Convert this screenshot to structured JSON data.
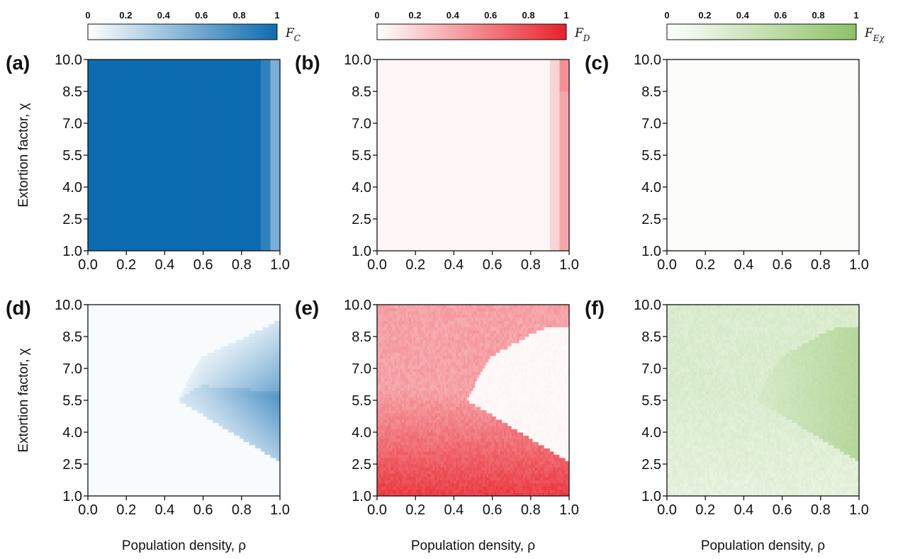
{
  "colorbars": [
    {
      "ticks": [
        "0",
        "0.2",
        "0.4",
        "0.6",
        "0.8",
        "1"
      ],
      "label": "F",
      "label_sub": "C",
      "color": "#0d6cb1"
    },
    {
      "ticks": [
        "0",
        "0.2",
        "0.4",
        "0.6",
        "0.8",
        "1"
      ],
      "label": "F",
      "label_sub": "D",
      "color": "#e8212b"
    },
    {
      "ticks": [
        "0",
        "0.2",
        "0.4",
        "0.6",
        "0.8",
        "1"
      ],
      "label": "F",
      "label_sub": "Eχ",
      "color": "#8cc265"
    }
  ],
  "chart_data": [
    {
      "panel": "(a)",
      "type": "heatmap",
      "strategy": "C",
      "color": "#0d6cb1",
      "xlabel": "",
      "ylabel": "Extortion factor, χ",
      "xlim": [
        0,
        1
      ],
      "ylim": [
        1,
        10
      ],
      "xticks": [
        "0.0",
        "0.2",
        "0.4",
        "0.6",
        "0.8",
        "1.0"
      ],
      "yticks": [
        "1.0",
        "2.5",
        "4.0",
        "5.5",
        "7.0",
        "8.5",
        "10.0"
      ],
      "grid": false,
      "description_values": {
        "rho_below_0.9": 1.0,
        "rho_0.9_to_0.95": 0.85,
        "rho_0.95_to_1.0": 0.55
      }
    },
    {
      "panel": "(b)",
      "type": "heatmap",
      "strategy": "D",
      "color": "#e8212b",
      "xlabel": "",
      "ylabel": "",
      "xlim": [
        0,
        1
      ],
      "ylim": [
        1,
        10
      ],
      "xticks": [
        "0.0",
        "0.2",
        "0.4",
        "0.6",
        "0.8",
        "1.0"
      ],
      "yticks": [
        "1.0",
        "2.5",
        "4.0",
        "5.5",
        "7.0",
        "8.5",
        "10.0"
      ],
      "grid": false,
      "description_values": {
        "rho_below_0.9": 0.04,
        "rho_0.9_to_0.95": 0.2,
        "rho_0.95_to_1.0": 0.45
      }
    },
    {
      "panel": "(c)",
      "type": "heatmap",
      "strategy": "Eχ",
      "color": "#8cc265",
      "xlabel": "",
      "ylabel": "",
      "xlim": [
        0,
        1
      ],
      "ylim": [
        1,
        10
      ],
      "xticks": [
        "0.0",
        "0.2",
        "0.4",
        "0.6",
        "0.8",
        "1.0"
      ],
      "yticks": [
        "1.0",
        "2.5",
        "4.0",
        "5.5",
        "7.0",
        "8.5",
        "10.0"
      ],
      "grid": false,
      "description_values": {
        "everywhere": 0.03,
        "rho_above_0.99_chi_above_8.5": 0.15
      }
    },
    {
      "panel": "(d)",
      "type": "heatmap",
      "strategy": "C",
      "color": "#0d6cb1",
      "xlabel": "Population density, ρ",
      "ylabel": "Extortion factor, χ",
      "xlim": [
        0,
        1
      ],
      "ylim": [
        1,
        10
      ],
      "xticks": [
        "0.0",
        "0.2",
        "0.4",
        "0.6",
        "0.8",
        "1.0"
      ],
      "yticks": [
        "1.0",
        "2.5",
        "4.0",
        "5.5",
        "7.0",
        "8.5",
        "10.0"
      ],
      "grid": false,
      "region_boundary": {
        "tip_rho": 0.47,
        "tip_chi": 5.5,
        "upper": [
          [
            0.47,
            5.5
          ],
          [
            0.55,
            7.0
          ],
          [
            0.6,
            7.6
          ],
          [
            0.8,
            8.4
          ],
          [
            1.0,
            9.3
          ]
        ],
        "lower": [
          [
            0.47,
            5.5
          ],
          [
            0.6,
            4.8
          ],
          [
            0.8,
            3.7
          ],
          [
            1.0,
            2.6
          ]
        ]
      },
      "description_values": {
        "outside_region": 0.03,
        "inside_region_max": 0.55
      }
    },
    {
      "panel": "(e)",
      "type": "heatmap",
      "strategy": "D",
      "color": "#e8212b",
      "xlabel": "Population density, ρ",
      "ylabel": "",
      "xlim": [
        0,
        1
      ],
      "ylim": [
        1,
        10
      ],
      "xticks": [
        "0.0",
        "0.2",
        "0.4",
        "0.6",
        "0.8",
        "1.0"
      ],
      "yticks": [
        "1.0",
        "2.5",
        "4.0",
        "5.5",
        "7.0",
        "8.5",
        "10.0"
      ],
      "grid": false,
      "region_boundary": {
        "tip_rho": 0.47,
        "tip_chi": 5.5,
        "upper": [
          [
            0.47,
            5.5
          ],
          [
            0.55,
            7.0
          ],
          [
            0.6,
            7.6
          ],
          [
            0.8,
            8.6
          ],
          [
            0.9,
            9.0
          ],
          [
            1.0,
            9.0
          ]
        ],
        "lower": [
          [
            0.47,
            5.5
          ],
          [
            0.6,
            4.8
          ],
          [
            0.8,
            3.7
          ],
          [
            1.0,
            2.6
          ]
        ]
      },
      "description_values": {
        "outside_region_top": 0.5,
        "outside_region_bottom": 0.85,
        "inside_region": 0.03
      }
    },
    {
      "panel": "(f)",
      "type": "heatmap",
      "strategy": "Eχ",
      "color": "#8cc265",
      "xlabel": "Population density, ρ",
      "ylabel": "",
      "xlim": [
        0,
        1
      ],
      "ylim": [
        1,
        10
      ],
      "xticks": [
        "0.0",
        "0.2",
        "0.4",
        "0.6",
        "0.8",
        "1.0"
      ],
      "yticks": [
        "1.0",
        "2.5",
        "4.0",
        "5.5",
        "7.0",
        "8.5",
        "10.0"
      ],
      "grid": false,
      "region_boundary": {
        "tip_rho": 0.47,
        "tip_chi": 5.5,
        "upper": [
          [
            0.47,
            5.5
          ],
          [
            0.55,
            7.0
          ],
          [
            0.6,
            7.6
          ],
          [
            0.8,
            8.6
          ],
          [
            0.9,
            9.0
          ],
          [
            1.0,
            9.0
          ]
        ],
        "lower": [
          [
            0.47,
            5.5
          ],
          [
            0.6,
            4.8
          ],
          [
            0.8,
            3.7
          ],
          [
            1.0,
            2.6
          ]
        ]
      },
      "description_values": {
        "outside_region": 0.3,
        "inside_region_max": 0.65
      }
    }
  ]
}
